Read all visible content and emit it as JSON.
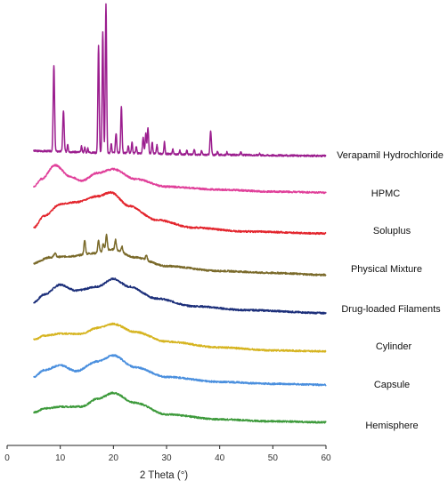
{
  "chart_data": {
    "type": "line",
    "title": "",
    "xlabel": "2 Theta (°)",
    "ylabel": "",
    "xlim": [
      0,
      60
    ],
    "xticks": [
      0,
      10,
      20,
      30,
      40,
      50,
      60
    ],
    "x_range": [
      5,
      60
    ],
    "grid": false,
    "legend": "labels to the right of each trace",
    "series": [
      {
        "name": "Verapamil Hydrochloride",
        "color": "#9b1d8e",
        "baseline": [
          [
            5,
            0.02
          ],
          [
            20,
            0.0
          ],
          [
            40,
            -0.02
          ],
          [
            60,
            -0.03
          ]
        ],
        "peaks": [
          {
            "x": 8.8,
            "h": 0.88,
            "w": 0.13
          },
          {
            "x": 10.6,
            "h": 0.42,
            "w": 0.13
          },
          {
            "x": 11.4,
            "h": 0.08,
            "w": 0.1
          },
          {
            "x": 14.0,
            "h": 0.06,
            "w": 0.1
          },
          {
            "x": 14.6,
            "h": 0.05,
            "w": 0.1
          },
          {
            "x": 15.2,
            "h": 0.04,
            "w": 0.1
          },
          {
            "x": 17.2,
            "h": 1.1,
            "w": 0.12
          },
          {
            "x": 18.0,
            "h": 1.24,
            "w": 0.12
          },
          {
            "x": 18.6,
            "h": 1.52,
            "w": 0.12
          },
          {
            "x": 19.6,
            "h": 0.1,
            "w": 0.1
          },
          {
            "x": 20.5,
            "h": 0.2,
            "w": 0.12
          },
          {
            "x": 21.5,
            "h": 0.48,
            "w": 0.12
          },
          {
            "x": 22.8,
            "h": 0.08,
            "w": 0.1
          },
          {
            "x": 23.5,
            "h": 0.12,
            "w": 0.1
          },
          {
            "x": 24.3,
            "h": 0.07,
            "w": 0.1
          },
          {
            "x": 25.6,
            "h": 0.16,
            "w": 0.12
          },
          {
            "x": 26.1,
            "h": 0.2,
            "w": 0.12
          },
          {
            "x": 26.5,
            "h": 0.26,
            "w": 0.12
          },
          {
            "x": 27.3,
            "h": 0.12,
            "w": 0.1
          },
          {
            "x": 28.2,
            "h": 0.09,
            "w": 0.1
          },
          {
            "x": 29.6,
            "h": 0.12,
            "w": 0.1
          },
          {
            "x": 31.2,
            "h": 0.05,
            "w": 0.1
          },
          {
            "x": 32.5,
            "h": 0.04,
            "w": 0.1
          },
          {
            "x": 33.8,
            "h": 0.05,
            "w": 0.1
          },
          {
            "x": 35.2,
            "h": 0.06,
            "w": 0.1
          },
          {
            "x": 36.6,
            "h": 0.04,
            "w": 0.1
          },
          {
            "x": 38.3,
            "h": 0.24,
            "w": 0.13
          },
          {
            "x": 39.6,
            "h": 0.04,
            "w": 0.1
          },
          {
            "x": 41.4,
            "h": 0.03,
            "w": 0.1
          },
          {
            "x": 44.0,
            "h": 0.03,
            "w": 0.1
          },
          {
            "x": 47.5,
            "h": 0.02,
            "w": 0.1
          }
        ]
      },
      {
        "name": "HPMC",
        "color": "#e0409a",
        "baseline": [
          [
            5,
            0.0
          ],
          [
            6.5,
            0.08
          ],
          [
            9,
            0.22
          ],
          [
            12,
            0.1
          ],
          [
            14,
            0.06
          ],
          [
            17,
            0.14
          ],
          [
            20,
            0.18
          ],
          [
            24,
            0.08
          ],
          [
            30,
            0.0
          ],
          [
            40,
            -0.03
          ],
          [
            50,
            -0.05
          ],
          [
            60,
            -0.06
          ]
        ],
        "peaks": []
      },
      {
        "name": "Soluplus",
        "color": "#e3262e",
        "baseline": [
          [
            5,
            0.0
          ],
          [
            7,
            0.12
          ],
          [
            10,
            0.24
          ],
          [
            13,
            0.26
          ],
          [
            17,
            0.32
          ],
          [
            19.5,
            0.36
          ],
          [
            23,
            0.22
          ],
          [
            28,
            0.08
          ],
          [
            35,
            0.0
          ],
          [
            45,
            -0.04
          ],
          [
            60,
            -0.06
          ]
        ],
        "peaks": []
      },
      {
        "name": "Physical Mixture",
        "color": "#7a6a2a",
        "baseline": [
          [
            5,
            0.0
          ],
          [
            8,
            0.06
          ],
          [
            12,
            0.07
          ],
          [
            16,
            0.1
          ],
          [
            20,
            0.14
          ],
          [
            24,
            0.06
          ],
          [
            30,
            -0.03
          ],
          [
            40,
            -0.08
          ],
          [
            50,
            -0.1
          ],
          [
            60,
            -0.12
          ]
        ],
        "peaks": [
          {
            "x": 9.0,
            "h": 0.04,
            "w": 0.2
          },
          {
            "x": 14.6,
            "h": 0.14,
            "w": 0.15
          },
          {
            "x": 17.2,
            "h": 0.12,
            "w": 0.15
          },
          {
            "x": 18.1,
            "h": 0.08,
            "w": 0.15
          },
          {
            "x": 18.7,
            "h": 0.16,
            "w": 0.15
          },
          {
            "x": 20.4,
            "h": 0.1,
            "w": 0.15
          },
          {
            "x": 21.6,
            "h": 0.06,
            "w": 0.15
          },
          {
            "x": 26.2,
            "h": 0.05,
            "w": 0.15
          }
        ]
      },
      {
        "name": "Drug-loaded Filaments",
        "color": "#1c2f7a",
        "baseline": [
          [
            5,
            0.0
          ],
          [
            7,
            0.08
          ],
          [
            10,
            0.18
          ],
          [
            13,
            0.12
          ],
          [
            17,
            0.16
          ],
          [
            20,
            0.24
          ],
          [
            23,
            0.16
          ],
          [
            28,
            0.04
          ],
          [
            35,
            -0.04
          ],
          [
            45,
            -0.08
          ],
          [
            60,
            -0.11
          ]
        ],
        "peaks": []
      },
      {
        "name": "Cylinder",
        "color": "#d6b420",
        "baseline": [
          [
            5,
            0.0
          ],
          [
            7,
            0.04
          ],
          [
            10,
            0.06
          ],
          [
            14,
            0.06
          ],
          [
            17,
            0.12
          ],
          [
            20,
            0.16
          ],
          [
            24,
            0.08
          ],
          [
            30,
            -0.02
          ],
          [
            40,
            -0.08
          ],
          [
            50,
            -0.11
          ],
          [
            60,
            -0.12
          ]
        ],
        "peaks": []
      },
      {
        "name": "Capsule",
        "color": "#4a8fde",
        "baseline": [
          [
            5,
            0.0
          ],
          [
            7,
            0.07
          ],
          [
            10,
            0.12
          ],
          [
            13,
            0.06
          ],
          [
            17,
            0.16
          ],
          [
            20,
            0.22
          ],
          [
            24,
            0.1
          ],
          [
            30,
            0.0
          ],
          [
            40,
            -0.05
          ],
          [
            50,
            -0.07
          ],
          [
            60,
            -0.08
          ]
        ],
        "peaks": []
      },
      {
        "name": "Hemisphere",
        "color": "#3d9a3b",
        "baseline": [
          [
            5,
            0.0
          ],
          [
            7,
            0.04
          ],
          [
            10,
            0.06
          ],
          [
            14,
            0.06
          ],
          [
            17,
            0.14
          ],
          [
            20,
            0.2
          ],
          [
            24,
            0.1
          ],
          [
            30,
            -0.02
          ],
          [
            40,
            -0.07
          ],
          [
            50,
            -0.09
          ],
          [
            60,
            -0.1
          ]
        ],
        "peaks": []
      }
    ]
  }
}
